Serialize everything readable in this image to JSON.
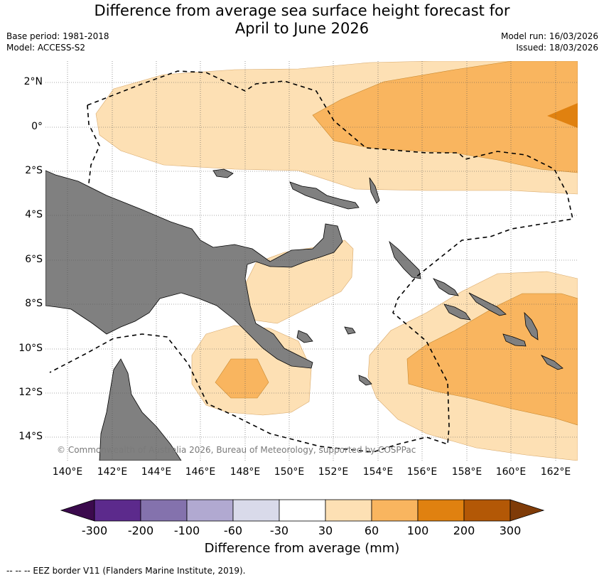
{
  "title_line1": "Difference from average sea surface height forecast for",
  "title_line2": "April to June 2026",
  "base_period": "Base period: 1981-2018",
  "model": "Model: ACCESS-S2",
  "model_run": "Model run: 16/03/2026",
  "issued": "Issued: 18/03/2026",
  "lat_labels": [
    "2°N",
    "0°",
    "2°S",
    "4°S",
    "6°S",
    "8°S",
    "10°S",
    "12°S",
    "14°S"
  ],
  "lon_labels": [
    "140°E",
    "142°E",
    "144°E",
    "146°E",
    "148°E",
    "150°E",
    "152°E",
    "154°E",
    "156°E",
    "158°E",
    "160°E",
    "162°E"
  ],
  "copyright": "© Commonwealth of Australia 2026, Bureau of Meteorology, supported by COSPPac",
  "colorbar": {
    "ticks": [
      "-300",
      "-200",
      "-100",
      "-60",
      "-30",
      "30",
      "60",
      "100",
      "200",
      "300"
    ],
    "colors": [
      "#3b0a4d",
      "#5c2a8c",
      "#8472ad",
      "#b1a9d1",
      "#d9daea",
      "#ffffff",
      "#fde0b4",
      "#f9b55f",
      "#e08110",
      "#b35806",
      "#7f3b08"
    ],
    "label": "Difference from average (mm)"
  },
  "footnote": "--  --  -- EEZ border V11 (Flanders Marine Institute, 2019).",
  "colors": {
    "land": "#808080",
    "grid": "#555555"
  }
}
